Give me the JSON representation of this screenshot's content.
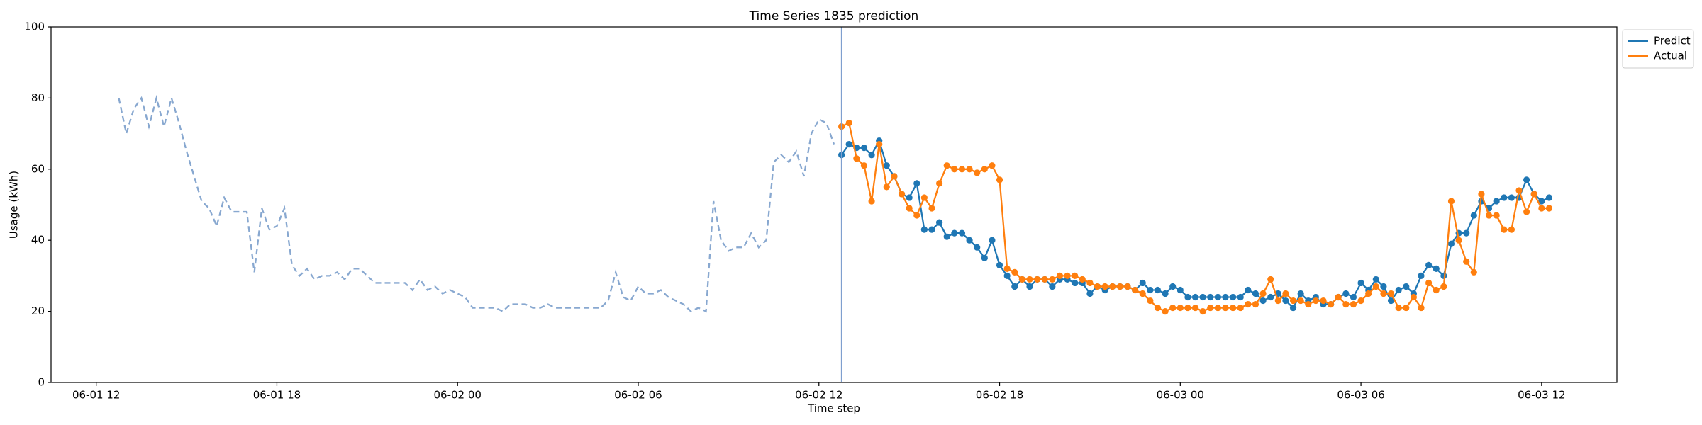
{
  "chart_data": {
    "type": "line",
    "title": "Time Series 1835 prediction",
    "xlabel": "Time step",
    "ylabel": "Usage (kWh)",
    "xlim": [
      "06-01 10:30",
      "06-03 14:30"
    ],
    "xticks": [
      "06-01 12",
      "06-01 18",
      "06-02 00",
      "06-02 06",
      "06-02 12",
      "06-02 18",
      "06-03 00",
      "06-03 06",
      "06-03 12"
    ],
    "ylim": [
      0,
      100
    ],
    "yticks": [
      0,
      20,
      40,
      60,
      80,
      100
    ],
    "grid": false,
    "legend": "outside upper right",
    "vline": {
      "x": "06-02 12:45",
      "color": "#7f9fcf"
    },
    "series": [
      {
        "color": "#88a8d0",
        "linestyle": "dashed",
        "marker": false,
        "x": [
          "06-01 12:45",
          "06-01 13:00",
          "06-01 13:15",
          "06-01 13:30",
          "06-01 13:45",
          "06-01 14:00",
          "06-01 14:15",
          "06-01 14:30",
          "06-01 14:45",
          "06-01 15:00",
          "06-01 15:15",
          "06-01 15:30",
          "06-01 15:45",
          "06-01 16:00",
          "06-01 16:15",
          "06-01 16:30",
          "06-01 16:45",
          "06-01 17:00",
          "06-01 17:15",
          "06-01 17:30",
          "06-01 17:45",
          "06-01 18:00",
          "06-01 18:15",
          "06-01 18:30",
          "06-01 18:45",
          "06-01 19:00",
          "06-01 19:15",
          "06-01 19:30",
          "06-01 19:45",
          "06-01 20:00",
          "06-01 20:15",
          "06-01 20:30",
          "06-01 20:45",
          "06-01 21:00",
          "06-01 21:15",
          "06-01 21:30",
          "06-01 21:45",
          "06-01 22:00",
          "06-01 22:15",
          "06-01 22:30",
          "06-01 22:45",
          "06-01 23:00",
          "06-01 23:15",
          "06-01 23:30",
          "06-01 23:45",
          "06-02 00:00",
          "06-02 00:15",
          "06-02 00:30",
          "06-02 00:45",
          "06-02 01:00",
          "06-02 01:15",
          "06-02 01:30",
          "06-02 01:45",
          "06-02 02:00",
          "06-02 02:15",
          "06-02 02:30",
          "06-02 02:45",
          "06-02 03:00",
          "06-02 03:15",
          "06-02 03:30",
          "06-02 03:45",
          "06-02 04:00",
          "06-02 04:15",
          "06-02 04:30",
          "06-02 04:45",
          "06-02 05:00",
          "06-02 05:15",
          "06-02 05:30",
          "06-02 05:45",
          "06-02 06:00",
          "06-02 06:15",
          "06-02 06:30",
          "06-02 06:45",
          "06-02 07:00",
          "06-02 07:15",
          "06-02 07:30",
          "06-02 07:45",
          "06-02 08:00",
          "06-02 08:15",
          "06-02 08:30",
          "06-02 08:45",
          "06-02 09:00",
          "06-02 09:15",
          "06-02 09:30",
          "06-02 09:45",
          "06-02 10:00",
          "06-02 10:15",
          "06-02 10:30",
          "06-02 10:45",
          "06-02 11:00",
          "06-02 11:15",
          "06-02 11:30",
          "06-02 11:45",
          "06-02 12:00",
          "06-02 12:15",
          "06-02 12:30"
        ],
        "values": [
          80,
          70,
          77,
          80,
          72,
          80,
          72,
          80,
          73,
          65,
          58,
          51,
          49,
          44,
          52,
          48,
          48,
          48,
          31,
          49,
          43,
          44,
          49,
          33,
          30,
          32,
          29,
          30,
          30,
          31,
          29,
          32,
          32,
          30,
          28,
          28,
          28,
          28,
          28,
          26,
          29,
          26,
          27,
          25,
          26,
          25,
          24,
          21,
          21,
          21,
          21,
          20,
          22,
          22,
          22,
          21,
          21,
          22,
          21,
          21,
          21,
          21,
          21,
          21,
          21,
          23,
          31,
          24,
          23,
          27,
          25,
          25,
          26,
          24,
          23,
          22,
          20,
          21,
          20,
          51,
          40,
          37,
          38,
          38,
          42,
          38,
          40,
          62,
          64,
          62,
          65,
          58,
          70,
          74,
          73,
          67
        ]
      },
      {
        "name": "Predict",
        "color": "#1f77b4",
        "linestyle": "solid",
        "marker": true,
        "x": [
          "06-02 12:45",
          "06-02 13:00",
          "06-02 13:15",
          "06-02 13:30",
          "06-02 13:45",
          "06-02 14:00",
          "06-02 14:15",
          "06-02 14:30",
          "06-02 14:45",
          "06-02 15:00",
          "06-02 15:15",
          "06-02 15:30",
          "06-02 15:45",
          "06-02 16:00",
          "06-02 16:15",
          "06-02 16:30",
          "06-02 16:45",
          "06-02 17:00",
          "06-02 17:15",
          "06-02 17:30",
          "06-02 17:45",
          "06-02 18:00",
          "06-02 18:15",
          "06-02 18:30",
          "06-02 18:45",
          "06-02 19:00",
          "06-02 19:15",
          "06-02 19:30",
          "06-02 19:45",
          "06-02 20:00",
          "06-02 20:15",
          "06-02 20:30",
          "06-02 20:45",
          "06-02 21:00",
          "06-02 21:15",
          "06-02 21:30",
          "06-02 21:45",
          "06-02 22:00",
          "06-02 22:15",
          "06-02 22:30",
          "06-02 22:45",
          "06-02 23:00",
          "06-02 23:15",
          "06-02 23:30",
          "06-02 23:45",
          "06-03 00:00",
          "06-03 00:15",
          "06-03 00:30",
          "06-03 00:45",
          "06-03 01:00",
          "06-03 01:15",
          "06-03 01:30",
          "06-03 01:45",
          "06-03 02:00",
          "06-03 02:15",
          "06-03 02:30",
          "06-03 02:45",
          "06-03 03:00",
          "06-03 03:15",
          "06-03 03:30",
          "06-03 03:45",
          "06-03 04:00",
          "06-03 04:15",
          "06-03 04:30",
          "06-03 04:45",
          "06-03 05:00",
          "06-03 05:15",
          "06-03 05:30",
          "06-03 05:45",
          "06-03 06:00",
          "06-03 06:15",
          "06-03 06:30",
          "06-03 06:45",
          "06-03 07:00",
          "06-03 07:15",
          "06-03 07:30",
          "06-03 07:45",
          "06-03 08:00",
          "06-03 08:15",
          "06-03 08:30",
          "06-03 08:45",
          "06-03 09:00",
          "06-03 09:15",
          "06-03 09:30",
          "06-03 09:45",
          "06-03 10:00",
          "06-03 10:15",
          "06-03 10:30",
          "06-03 10:45",
          "06-03 11:00",
          "06-03 11:15",
          "06-03 11:30",
          "06-03 11:45",
          "06-03 12:00",
          "06-03 12:15"
        ],
        "values": [
          64,
          67,
          66,
          66,
          64,
          68,
          61,
          58,
          53,
          52,
          56,
          43,
          43,
          45,
          41,
          42,
          42,
          40,
          38,
          35,
          40,
          33,
          30,
          27,
          29,
          27,
          29,
          29,
          27,
          29,
          29,
          28,
          28,
          25,
          27,
          26,
          27,
          27,
          27,
          26,
          28,
          26,
          26,
          25,
          27,
          26,
          24,
          24,
          24,
          24,
          24,
          24,
          24,
          24,
          26,
          25,
          23,
          24,
          25,
          23,
          21,
          25,
          23,
          24,
          22,
          22,
          24,
          25,
          24,
          28,
          26,
          29,
          27,
          23,
          26,
          27,
          25,
          30,
          33,
          32,
          30,
          39,
          42,
          42,
          47,
          51,
          49,
          51,
          52,
          52,
          52,
          57,
          53,
          51,
          52
        ]
      },
      {
        "name": "Actual",
        "color": "#ff7f0e",
        "linestyle": "solid",
        "marker": true,
        "x": [
          "06-02 12:45",
          "06-02 13:00",
          "06-02 13:15",
          "06-02 13:30",
          "06-02 13:45",
          "06-02 14:00",
          "06-02 14:15",
          "06-02 14:30",
          "06-02 14:45",
          "06-02 15:00",
          "06-02 15:15",
          "06-02 15:30",
          "06-02 15:45",
          "06-02 16:00",
          "06-02 16:15",
          "06-02 16:30",
          "06-02 16:45",
          "06-02 17:00",
          "06-02 17:15",
          "06-02 17:30",
          "06-02 17:45",
          "06-02 18:00",
          "06-02 18:15",
          "06-02 18:30",
          "06-02 18:45",
          "06-02 19:00",
          "06-02 19:15",
          "06-02 19:30",
          "06-02 19:45",
          "06-02 20:00",
          "06-02 20:15",
          "06-02 20:30",
          "06-02 20:45",
          "06-02 21:00",
          "06-02 21:15",
          "06-02 21:30",
          "06-02 21:45",
          "06-02 22:00",
          "06-02 22:15",
          "06-02 22:30",
          "06-02 22:45",
          "06-02 23:00",
          "06-02 23:15",
          "06-02 23:30",
          "06-02 23:45",
          "06-03 00:00",
          "06-03 00:15",
          "06-03 00:30",
          "06-03 00:45",
          "06-03 01:00",
          "06-03 01:15",
          "06-03 01:30",
          "06-03 01:45",
          "06-03 02:00",
          "06-03 02:15",
          "06-03 02:30",
          "06-03 02:45",
          "06-03 03:00",
          "06-03 03:15",
          "06-03 03:30",
          "06-03 03:45",
          "06-03 04:00",
          "06-03 04:15",
          "06-03 04:30",
          "06-03 04:45",
          "06-03 05:00",
          "06-03 05:15",
          "06-03 05:30",
          "06-03 05:45",
          "06-03 06:00",
          "06-03 06:15",
          "06-03 06:30",
          "06-03 06:45",
          "06-03 07:00",
          "06-03 07:15",
          "06-03 07:30",
          "06-03 07:45",
          "06-03 08:00",
          "06-03 08:15",
          "06-03 08:30",
          "06-03 08:45",
          "06-03 09:00",
          "06-03 09:15",
          "06-03 09:30",
          "06-03 09:45",
          "06-03 10:00",
          "06-03 10:15",
          "06-03 10:30",
          "06-03 10:45",
          "06-03 11:00",
          "06-03 11:15",
          "06-03 11:30",
          "06-03 11:45",
          "06-03 12:00",
          "06-03 12:15"
        ],
        "values": [
          72,
          73,
          63,
          61,
          51,
          67,
          55,
          58,
          53,
          49,
          47,
          52,
          49,
          56,
          61,
          60,
          60,
          60,
          59,
          60,
          61,
          57,
          32,
          31,
          29,
          29,
          29,
          29,
          29,
          30,
          30,
          30,
          29,
          28,
          27,
          27,
          27,
          27,
          27,
          26,
          25,
          23,
          21,
          20,
          21,
          21,
          21,
          21,
          20,
          21,
          21,
          21,
          21,
          21,
          22,
          22,
          25,
          29,
          23,
          25,
          23,
          23,
          22,
          23,
          23,
          22,
          24,
          22,
          22,
          23,
          25,
          27,
          25,
          25,
          21,
          21,
          24,
          21,
          28,
          26,
          27,
          51,
          40,
          34,
          31,
          53,
          47,
          47,
          43,
          43,
          54,
          48,
          53,
          49,
          49
        ]
      }
    ]
  }
}
